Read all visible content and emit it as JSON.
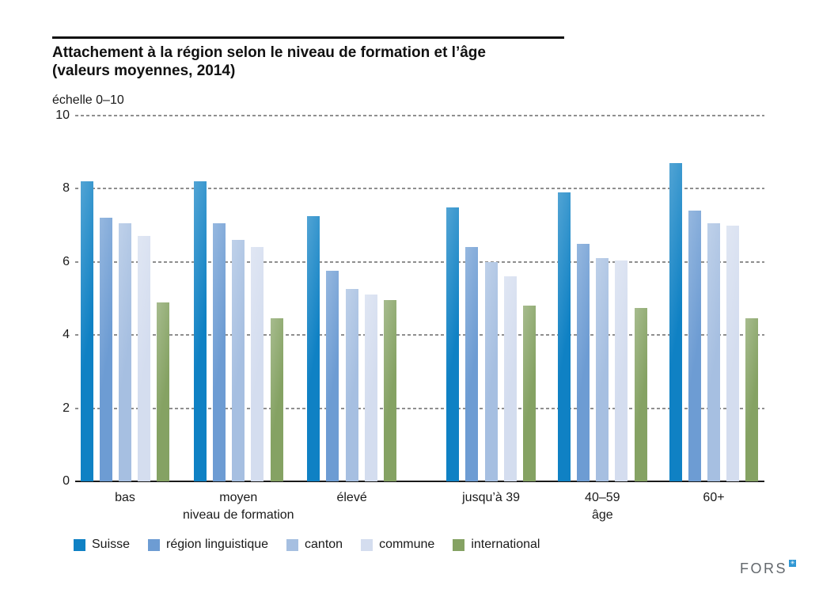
{
  "header": {
    "title_line1": "Attachement à la région selon le niveau de formation et l’âge",
    "title_line2": "(valeurs moyennes, 2014)",
    "scale_note": "échelle 0–10"
  },
  "chart_data": {
    "type": "bar",
    "title": "Attachement à la région selon le niveau de formation et l’âge (valeurs moyennes, 2014)",
    "scale_label": "échelle 0–10",
    "categories": [
      "bas",
      "moyen",
      "élevé",
      "jusqu’à 39",
      "40–59",
      "60+"
    ],
    "category_groups": [
      {
        "label": "niveau de formation",
        "middle_category": "moyen"
      },
      {
        "label": "âge",
        "middle_category": "40–59"
      }
    ],
    "series": [
      {
        "name": "Suisse",
        "color": "#0f81c4",
        "values": [
          8.2,
          8.2,
          7.25,
          7.5,
          7.9,
          8.7
        ]
      },
      {
        "name": "région linguistique",
        "color": "#6d9cd3",
        "values": [
          7.2,
          7.05,
          5.75,
          6.4,
          6.5,
          7.4
        ]
      },
      {
        "name": "canton",
        "color": "#a6bfe1",
        "values": [
          7.05,
          6.6,
          5.25,
          6.0,
          6.1,
          7.05
        ]
      },
      {
        "name": "commune",
        "color": "#d4ddef",
        "values": [
          6.7,
          6.4,
          5.1,
          5.6,
          6.05,
          7.0
        ]
      },
      {
        "name": "international",
        "color": "#85a263",
        "values": [
          4.9,
          4.45,
          4.95,
          4.8,
          4.75,
          4.45
        ]
      }
    ],
    "ylim": [
      0,
      10
    ],
    "yticks": [
      0,
      2,
      4,
      6,
      8,
      10
    ],
    "grid": "dotted-horizontal",
    "legend_position": "bottom"
  },
  "footer": {
    "logo_text": "FORS",
    "logo_mark": "✳",
    "logo_mark_color": "#2f97d4"
  }
}
